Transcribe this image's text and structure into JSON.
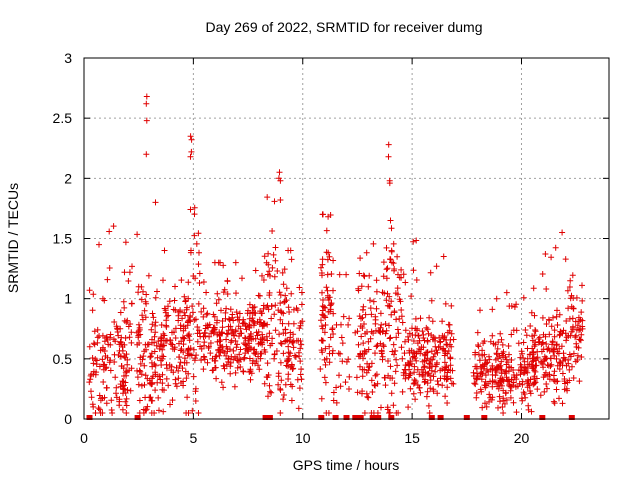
{
  "chart_data": {
    "type": "scatter",
    "title": "Day 269 of 2022, SRMTID for receiver dumg",
    "xlabel": "GPS time / hours",
    "ylabel": "SRMTID / TECUs",
    "xlim": [
      0,
      24
    ],
    "ylim": [
      0,
      3
    ],
    "xticks": [
      0,
      5,
      10,
      15,
      20
    ],
    "xtick_labels": [
      "0",
      "5",
      "10",
      "15",
      "20"
    ],
    "yticks": [
      0,
      0.5,
      1,
      1.5,
      2,
      2.5,
      3
    ],
    "ytick_labels": [
      "0",
      "0.5",
      "1",
      "1.5",
      "2",
      "2.5",
      "3"
    ],
    "grid": true,
    "marker": "+",
    "color": "#e00000",
    "series": [
      {
        "name": "SRMTID",
        "clusters": [
          {
            "t_start": 0.2,
            "t_end": 2.0,
            "count": 140,
            "base": 0.45,
            "spread": 0.35,
            "max": 1.7
          },
          {
            "t_start": 1.8,
            "t_end": 2.2,
            "count": 20,
            "base": 0.9,
            "spread": 0.5,
            "max": 2.2
          },
          {
            "t_start": 2.4,
            "t_end": 3.3,
            "count": 90,
            "base": 0.55,
            "spread": 0.45,
            "max": 1.8
          },
          {
            "t_start": 3.3,
            "t_end": 4.6,
            "count": 110,
            "base": 0.6,
            "spread": 0.35,
            "max": 1.4
          },
          {
            "t_start": 4.6,
            "t_end": 5.3,
            "count": 70,
            "base": 0.8,
            "spread": 0.6,
            "max": 2.0
          },
          {
            "t_start": 5.3,
            "t_end": 8.2,
            "count": 260,
            "base": 0.65,
            "spread": 0.25,
            "max": 1.3
          },
          {
            "t_start": 8.2,
            "t_end": 9.2,
            "count": 90,
            "base": 0.75,
            "spread": 0.45,
            "max": 2.0
          },
          {
            "t_start": 9.2,
            "t_end": 10.0,
            "count": 70,
            "base": 0.55,
            "spread": 0.3,
            "max": 1.4
          },
          {
            "t_start": 10.8,
            "t_end": 11.4,
            "count": 70,
            "base": 0.85,
            "spread": 0.45,
            "max": 1.7
          },
          {
            "t_start": 11.4,
            "t_end": 12.5,
            "count": 25,
            "base": 0.5,
            "spread": 0.3,
            "max": 1.2
          },
          {
            "t_start": 12.5,
            "t_end": 13.6,
            "count": 90,
            "base": 0.6,
            "spread": 0.45,
            "max": 1.8
          },
          {
            "t_start": 13.6,
            "t_end": 14.6,
            "count": 90,
            "base": 0.75,
            "spread": 0.5,
            "max": 2.3
          },
          {
            "t_start": 14.6,
            "t_end": 16.9,
            "count": 210,
            "base": 0.5,
            "spread": 0.25,
            "max": 1.5
          },
          {
            "t_start": 17.8,
            "t_end": 20.5,
            "count": 230,
            "base": 0.38,
            "spread": 0.2,
            "max": 1.05
          },
          {
            "t_start": 20.5,
            "t_end": 22.2,
            "count": 160,
            "base": 0.5,
            "spread": 0.25,
            "max": 1.55
          },
          {
            "t_start": 22.2,
            "t_end": 22.8,
            "count": 50,
            "base": 0.75,
            "spread": 0.3,
            "max": 1.4
          }
        ],
        "peaks": [
          {
            "t": 2.85,
            "values": [
              2.68,
              2.62,
              2.48,
              2.2
            ]
          },
          {
            "t": 4.9,
            "values": [
              2.35,
              2.32,
              2.22,
              2.18
            ]
          },
          {
            "t": 8.95,
            "values": [
              2.05,
              1.98,
              1.82
            ]
          },
          {
            "t": 13.95,
            "values": [
              2.28,
              2.18,
              1.98,
              1.96
            ]
          }
        ],
        "zero_markers": [
          0.25,
          2.45,
          8.3,
          8.5,
          10.85,
          11.5,
          12.0,
          12.4,
          12.65,
          13.2,
          13.45,
          14.05,
          15.9,
          16.3,
          17.5,
          18.3,
          20.95,
          22.3
        ]
      }
    ]
  }
}
